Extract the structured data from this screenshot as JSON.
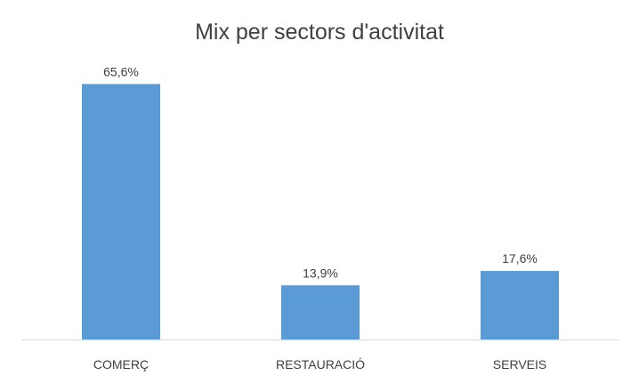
{
  "chart_data": {
    "type": "bar",
    "title": "Mix per sectors d'activitat",
    "xlabel": "",
    "ylabel": "",
    "categories": [
      "COMERÇ",
      "RESTAURACIÓ",
      "SERVEIS"
    ],
    "values": [
      65.6,
      13.9,
      17.6
    ],
    "data_labels": [
      "65,6%",
      "13,9%",
      "17,6%"
    ],
    "ylim": [
      0,
      70
    ],
    "grid": false,
    "legend": "none",
    "bar_color": "#5b9bd5",
    "axis_color": "#d9d9d9",
    "text_color": "#404040"
  }
}
